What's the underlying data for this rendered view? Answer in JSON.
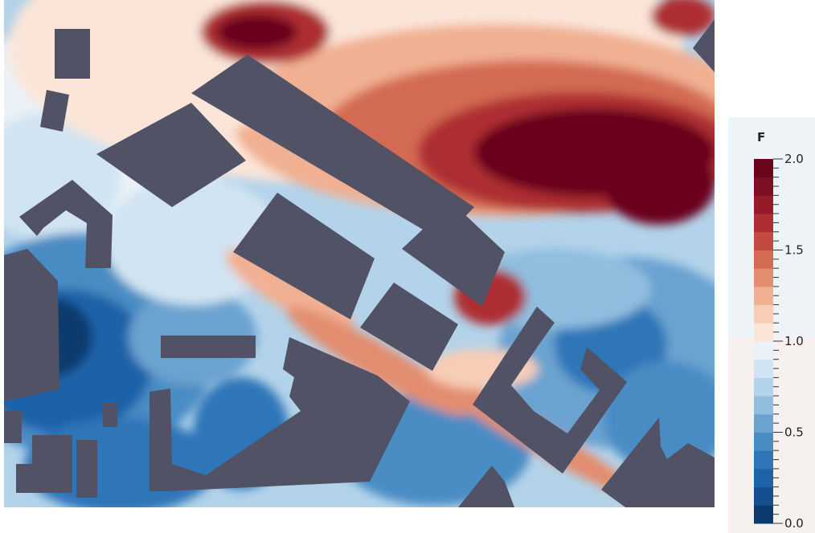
{
  "legend": {
    "title": "F",
    "ticks": [
      "2.0",
      "1.5",
      "1.0",
      "0.5",
      "0.0"
    ],
    "min": 0.0,
    "max": 2.0,
    "bands": 20,
    "colors": [
      "#0b3a6e",
      "#144f8f",
      "#1e62a8",
      "#2f76b8",
      "#4a8cc4",
      "#6ba3d0",
      "#90bedf",
      "#b3d3ea",
      "#d1e4f2",
      "#eaf2f8",
      "#fbe5d8",
      "#f7cdb6",
      "#f1b092",
      "#e38d6f",
      "#d36a52",
      "#c24a3e",
      "#ad2f32",
      "#951b2a",
      "#7d0f23",
      "#6b051e"
    ]
  },
  "colors": {
    "building": "#525266",
    "background": "#ffffff"
  }
}
